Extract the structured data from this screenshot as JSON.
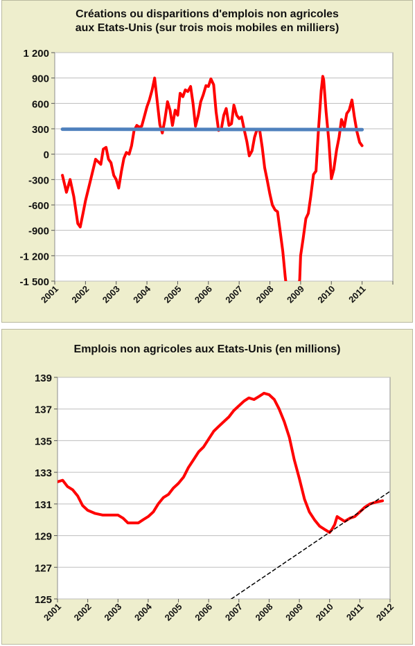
{
  "colors": {
    "panel_bg": "#eeeecd",
    "plot_bg": "#ffffff",
    "grid": "#bdbdbd",
    "series": "#ff0000",
    "reference_line": "#4f81bd",
    "trend": "#000000"
  },
  "chart_data": [
    {
      "type": "line",
      "title_lines": [
        "Créations  ou disparitions d'emplois non agricoles",
        "aux Etats-Unis  (sur trois mois mobiles en milliers)"
      ],
      "xlabel": "",
      "ylabel": "",
      "ylim": [
        -1500,
        1200
      ],
      "xlim": [
        2001,
        2012
      ],
      "grid": "horizontal",
      "x_tick_labels": [
        "2001",
        "2002",
        "2003",
        "2004",
        "2005",
        "2006",
        "2007",
        "2008",
        "2009",
        "2010",
        "2011"
      ],
      "y_tick_labels": [
        "1 200",
        "900",
        "600",
        "300",
        "0",
        "-300",
        "-600",
        "-900",
        "-1 200",
        "-1 500"
      ],
      "y_tick_values": [
        1200,
        900,
        600,
        300,
        0,
        -300,
        -600,
        -900,
        -1200,
        -1500
      ],
      "series": [
        {
          "points": [
            [
              2001.25,
              -250
            ],
            [
              2001.38,
              -450
            ],
            [
              2001.5,
              -300
            ],
            [
              2001.62,
              -500
            ],
            [
              2001.75,
              -820
            ],
            [
              2001.83,
              -860
            ],
            [
              2001.92,
              -700
            ],
            [
              2002.0,
              -550
            ],
            [
              2002.17,
              -300
            ],
            [
              2002.33,
              -60
            ],
            [
              2002.5,
              -120
            ],
            [
              2002.58,
              60
            ],
            [
              2002.67,
              80
            ],
            [
              2002.75,
              -60
            ],
            [
              2002.83,
              -100
            ],
            [
              2002.92,
              -250
            ],
            [
              2003.0,
              -300
            ],
            [
              2003.08,
              -400
            ],
            [
              2003.17,
              -200
            ],
            [
              2003.25,
              -50
            ],
            [
              2003.33,
              20
            ],
            [
              2003.42,
              0
            ],
            [
              2003.5,
              100
            ],
            [
              2003.58,
              280
            ],
            [
              2003.67,
              340
            ],
            [
              2003.75,
              320
            ],
            [
              2003.83,
              330
            ],
            [
              2003.92,
              450
            ],
            [
              2004.0,
              560
            ],
            [
              2004.08,
              640
            ],
            [
              2004.17,
              760
            ],
            [
              2004.25,
              900
            ],
            [
              2004.33,
              640
            ],
            [
              2004.42,
              350
            ],
            [
              2004.5,
              250
            ],
            [
              2004.58,
              400
            ],
            [
              2004.67,
              620
            ],
            [
              2004.75,
              520
            ],
            [
              2004.83,
              340
            ],
            [
              2004.92,
              520
            ],
            [
              2005.0,
              460
            ],
            [
              2005.08,
              720
            ],
            [
              2005.17,
              680
            ],
            [
              2005.25,
              760
            ],
            [
              2005.33,
              740
            ],
            [
              2005.42,
              800
            ],
            [
              2005.5,
              600
            ],
            [
              2005.58,
              330
            ],
            [
              2005.67,
              460
            ],
            [
              2005.75,
              620
            ],
            [
              2005.83,
              700
            ],
            [
              2005.92,
              810
            ],
            [
              2006.0,
              800
            ],
            [
              2006.08,
              890
            ],
            [
              2006.17,
              820
            ],
            [
              2006.25,
              500
            ],
            [
              2006.33,
              280
            ],
            [
              2006.42,
              300
            ],
            [
              2006.5,
              460
            ],
            [
              2006.58,
              540
            ],
            [
              2006.67,
              340
            ],
            [
              2006.75,
              360
            ],
            [
              2006.83,
              580
            ],
            [
              2006.92,
              460
            ],
            [
              2007.0,
              420
            ],
            [
              2007.08,
              440
            ],
            [
              2007.17,
              280
            ],
            [
              2007.25,
              150
            ],
            [
              2007.33,
              -20
            ],
            [
              2007.42,
              40
            ],
            [
              2007.5,
              200
            ],
            [
              2007.58,
              290
            ],
            [
              2007.67,
              280
            ],
            [
              2007.75,
              80
            ],
            [
              2007.83,
              -160
            ],
            [
              2007.92,
              -320
            ],
            [
              2008.0,
              -470
            ],
            [
              2008.08,
              -600
            ],
            [
              2008.17,
              -660
            ],
            [
              2008.25,
              -680
            ],
            [
              2008.33,
              -900
            ],
            [
              2008.42,
              -1150
            ],
            [
              2008.5,
              -1450
            ],
            [
              2008.55,
              -1600
            ],
            [
              2008.92,
              -1600
            ],
            [
              2008.97,
              -1480
            ],
            [
              2009.0,
              -1200
            ],
            [
              2009.08,
              -1000
            ],
            [
              2009.17,
              -760
            ],
            [
              2009.25,
              -700
            ],
            [
              2009.33,
              -500
            ],
            [
              2009.42,
              -240
            ],
            [
              2009.5,
              -200
            ],
            [
              2009.58,
              280
            ],
            [
              2009.67,
              750
            ],
            [
              2009.72,
              920
            ],
            [
              2009.75,
              880
            ],
            [
              2009.83,
              500
            ],
            [
              2009.92,
              150
            ],
            [
              2010.0,
              -290
            ],
            [
              2010.08,
              -180
            ],
            [
              2010.17,
              50
            ],
            [
              2010.25,
              200
            ],
            [
              2010.33,
              410
            ],
            [
              2010.42,
              320
            ],
            [
              2010.5,
              480
            ],
            [
              2010.58,
              520
            ],
            [
              2010.67,
              640
            ],
            [
              2010.75,
              440
            ],
            [
              2010.83,
              270
            ],
            [
              2010.92,
              140
            ],
            [
              2011.0,
              100
            ]
          ]
        },
        {
          "points": [
            [
              2001.25,
              295
            ],
            [
              2011.0,
              290
            ]
          ]
        }
      ]
    },
    {
      "type": "line",
      "title": "Emplois non agricoles aux Etats-Unis (en millions)",
      "xlabel": "",
      "ylabel": "",
      "ylim": [
        125,
        139
      ],
      "xlim": [
        2001,
        2012
      ],
      "grid": "horizontal",
      "x_tick_labels": [
        "2001",
        "2002",
        "2003",
        "2004",
        "2005",
        "2006",
        "2007",
        "2008",
        "2009",
        "2010",
        "2011",
        "2012"
      ],
      "y_tick_labels": [
        "139",
        "137",
        "135",
        "133",
        "131",
        "129",
        "127",
        "125"
      ],
      "y_tick_values": [
        139,
        137,
        135,
        133,
        131,
        129,
        127,
        125
      ],
      "series": [
        {
          "points": [
            [
              2001.0,
              132.4
            ],
            [
              2001.17,
              132.5
            ],
            [
              2001.33,
              132.1
            ],
            [
              2001.5,
              131.9
            ],
            [
              2001.67,
              131.5
            ],
            [
              2001.83,
              130.9
            ],
            [
              2002.0,
              130.6
            ],
            [
              2002.25,
              130.4
            ],
            [
              2002.5,
              130.3
            ],
            [
              2002.75,
              130.3
            ],
            [
              2003.0,
              130.3
            ],
            [
              2003.17,
              130.1
            ],
            [
              2003.33,
              129.8
            ],
            [
              2003.5,
              129.8
            ],
            [
              2003.67,
              129.8
            ],
            [
              2003.83,
              130.0
            ],
            [
              2004.0,
              130.2
            ],
            [
              2004.17,
              130.5
            ],
            [
              2004.33,
              131.0
            ],
            [
              2004.5,
              131.4
            ],
            [
              2004.67,
              131.6
            ],
            [
              2004.83,
              132.0
            ],
            [
              2005.0,
              132.3
            ],
            [
              2005.17,
              132.7
            ],
            [
              2005.33,
              133.3
            ],
            [
              2005.5,
              133.8
            ],
            [
              2005.67,
              134.3
            ],
            [
              2005.83,
              134.6
            ],
            [
              2006.0,
              135.1
            ],
            [
              2006.17,
              135.6
            ],
            [
              2006.33,
              135.9
            ],
            [
              2006.5,
              136.2
            ],
            [
              2006.67,
              136.5
            ],
            [
              2006.83,
              136.9
            ],
            [
              2007.0,
              137.2
            ],
            [
              2007.17,
              137.5
            ],
            [
              2007.33,
              137.7
            ],
            [
              2007.5,
              137.6
            ],
            [
              2007.67,
              137.8
            ],
            [
              2007.83,
              138.0
            ],
            [
              2008.0,
              137.9
            ],
            [
              2008.17,
              137.6
            ],
            [
              2008.33,
              137.0
            ],
            [
              2008.5,
              136.2
            ],
            [
              2008.67,
              135.2
            ],
            [
              2008.83,
              133.8
            ],
            [
              2009.0,
              132.6
            ],
            [
              2009.17,
              131.3
            ],
            [
              2009.33,
              130.5
            ],
            [
              2009.5,
              130.0
            ],
            [
              2009.67,
              129.6
            ],
            [
              2009.83,
              129.4
            ],
            [
              2010.0,
              129.2
            ],
            [
              2010.08,
              129.4
            ],
            [
              2010.17,
              129.7
            ],
            [
              2010.25,
              130.2
            ],
            [
              2010.33,
              130.1
            ],
            [
              2010.5,
              129.9
            ],
            [
              2010.67,
              130.1
            ],
            [
              2010.83,
              130.2
            ],
            [
              2011.0,
              130.5
            ],
            [
              2011.17,
              130.8
            ],
            [
              2011.33,
              131.0
            ],
            [
              2011.5,
              131.1
            ],
            [
              2011.75,
              131.2
            ]
          ]
        },
        {
          "dashed": true,
          "points": [
            [
              2006.75,
              125.0
            ],
            [
              2012.0,
              131.8
            ]
          ]
        }
      ]
    }
  ]
}
